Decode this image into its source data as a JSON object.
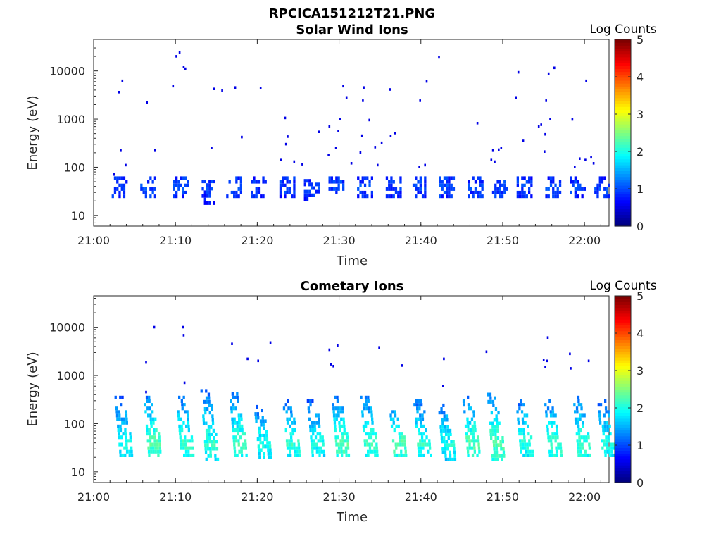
{
  "figure_title": "RPCICA151212T21.PNG",
  "chart_data": [
    {
      "type": "heatmap",
      "title": "Solar Wind Ions",
      "xlabel": "Time",
      "ylabel": "Energy (eV)",
      "xticks": [
        "21:00",
        "21:10",
        "21:20",
        "21:30",
        "21:40",
        "21:50",
        "22:00"
      ],
      "xlim_minutes": [
        0,
        63
      ],
      "yticks": [
        "10",
        "100",
        "1000",
        "10000"
      ],
      "ylim": [
        6,
        45000
      ],
      "yscale": "log",
      "colorbar": {
        "label": "Log Counts",
        "min": 0,
        "max": 5,
        "ticks": [
          "0",
          "1",
          "2",
          "3",
          "4",
          "5"
        ],
        "colormap": "jet"
      },
      "bursts": [
        {
          "t": 3.0,
          "e_lo": 25,
          "e_hi": 60,
          "peak": 0.55
        },
        {
          "t": 6.5,
          "e_lo": 25,
          "e_hi": 60,
          "peak": 0.6
        },
        {
          "t": 10.5,
          "e_lo": 25,
          "e_hi": 60,
          "peak": 0.6
        },
        {
          "t": 14.0,
          "e_lo": 18,
          "e_hi": 60,
          "peak": 0.55
        },
        {
          "t": 17.0,
          "e_lo": 25,
          "e_hi": 60,
          "peak": 0.6
        },
        {
          "t": 20.0,
          "e_lo": 25,
          "e_hi": 60,
          "peak": 0.55
        },
        {
          "t": 23.5,
          "e_lo": 25,
          "e_hi": 60,
          "peak": 0.55
        },
        {
          "t": 26.5,
          "e_lo": 22,
          "e_hi": 60,
          "peak": 0.5
        },
        {
          "t": 29.5,
          "e_lo": 25,
          "e_hi": 60,
          "peak": 0.6
        },
        {
          "t": 33.0,
          "e_lo": 25,
          "e_hi": 60,
          "peak": 0.6
        },
        {
          "t": 36.5,
          "e_lo": 25,
          "e_hi": 60,
          "peak": 0.5
        },
        {
          "t": 39.5,
          "e_lo": 25,
          "e_hi": 60,
          "peak": 0.55
        },
        {
          "t": 43.0,
          "e_lo": 25,
          "e_hi": 60,
          "peak": 0.6
        },
        {
          "t": 46.5,
          "e_lo": 25,
          "e_hi": 60,
          "peak": 0.55
        },
        {
          "t": 49.5,
          "e_lo": 25,
          "e_hi": 60,
          "peak": 0.6
        },
        {
          "t": 52.5,
          "e_lo": 25,
          "e_hi": 60,
          "peak": 0.55
        },
        {
          "t": 56.0,
          "e_lo": 25,
          "e_hi": 60,
          "peak": 0.55
        },
        {
          "t": 59.0,
          "e_lo": 25,
          "e_hi": 60,
          "peak": 0.55
        },
        {
          "t": 62.0,
          "e_lo": 25,
          "e_hi": 60,
          "peak": 0.55
        }
      ],
      "points": [
        {
          "t": 3.0,
          "e": 3600
        },
        {
          "t": 3.4,
          "e": 6200
        },
        {
          "t": 6.4,
          "e": 2200
        },
        {
          "t": 9.6,
          "e": 4800
        },
        {
          "t": 10.0,
          "e": 20000
        },
        {
          "t": 10.4,
          "e": 24000
        },
        {
          "t": 10.9,
          "e": 12000
        },
        {
          "t": 11.1,
          "e": 11000
        },
        {
          "t": 14.6,
          "e": 4200
        },
        {
          "t": 15.6,
          "e": 3900
        },
        {
          "t": 17.2,
          "e": 4500
        },
        {
          "t": 20.3,
          "e": 4400
        },
        {
          "t": 3.2,
          "e": 220
        },
        {
          "t": 7.4,
          "e": 220
        },
        {
          "t": 14.3,
          "e": 250
        },
        {
          "t": 18.0,
          "e": 420
        },
        {
          "t": 23.3,
          "e": 1050
        },
        {
          "t": 23.6,
          "e": 430
        },
        {
          "t": 23.4,
          "e": 300
        },
        {
          "t": 27.4,
          "e": 540
        },
        {
          "t": 28.7,
          "e": 700
        },
        {
          "t": 30.0,
          "e": 1000
        },
        {
          "t": 30.4,
          "e": 4800
        },
        {
          "t": 30.8,
          "e": 2800
        },
        {
          "t": 28.6,
          "e": 180
        },
        {
          "t": 29.5,
          "e": 250
        },
        {
          "t": 29.8,
          "e": 560
        },
        {
          "t": 32.5,
          "e": 200
        },
        {
          "t": 32.7,
          "e": 450
        },
        {
          "t": 32.8,
          "e": 2400
        },
        {
          "t": 32.9,
          "e": 4500
        },
        {
          "t": 33.6,
          "e": 950
        },
        {
          "t": 34.3,
          "e": 260
        },
        {
          "t": 35.1,
          "e": 320
        },
        {
          "t": 36.1,
          "e": 4100
        },
        {
          "t": 36.2,
          "e": 440
        },
        {
          "t": 36.7,
          "e": 510
        },
        {
          "t": 39.8,
          "e": 2400
        },
        {
          "t": 40.6,
          "e": 6000
        },
        {
          "t": 42.1,
          "e": 19000
        },
        {
          "t": 46.8,
          "e": 820
        },
        {
          "t": 48.7,
          "e": 220
        },
        {
          "t": 49.4,
          "e": 230
        },
        {
          "t": 49.7,
          "e": 250
        },
        {
          "t": 51.5,
          "e": 2800
        },
        {
          "t": 51.8,
          "e": 9300
        },
        {
          "t": 52.4,
          "e": 350
        },
        {
          "t": 54.3,
          "e": 700
        },
        {
          "t": 54.6,
          "e": 760
        },
        {
          "t": 55.2,
          "e": 2400
        },
        {
          "t": 55.1,
          "e": 480
        },
        {
          "t": 55.0,
          "e": 210
        },
        {
          "t": 55.5,
          "e": 8700
        },
        {
          "t": 55.7,
          "e": 1000
        },
        {
          "t": 56.2,
          "e": 11500
        },
        {
          "t": 58.4,
          "e": 980
        },
        {
          "t": 59.3,
          "e": 150
        },
        {
          "t": 60.0,
          "e": 140
        },
        {
          "t": 60.7,
          "e": 160
        },
        {
          "t": 60.1,
          "e": 6200
        },
        {
          "t": 2.4,
          "e": 70
        },
        {
          "t": 3.8,
          "e": 110
        },
        {
          "t": 22.8,
          "e": 140
        },
        {
          "t": 24.4,
          "e": 130
        },
        {
          "t": 25.4,
          "e": 115
        },
        {
          "t": 31.4,
          "e": 120
        },
        {
          "t": 34.6,
          "e": 110
        },
        {
          "t": 39.7,
          "e": 100
        },
        {
          "t": 40.4,
          "e": 110
        },
        {
          "t": 48.5,
          "e": 140
        },
        {
          "t": 48.9,
          "e": 130
        },
        {
          "t": 58.7,
          "e": 100
        },
        {
          "t": 61.0,
          "e": 120
        }
      ]
    },
    {
      "type": "heatmap",
      "title": "Cometary Ions",
      "xlabel": "Time",
      "ylabel": "Energy (eV)",
      "xticks": [
        "21:00",
        "21:10",
        "21:20",
        "21:30",
        "21:40",
        "21:50",
        "22:00"
      ],
      "xlim_minutes": [
        0,
        63
      ],
      "yticks": [
        "10",
        "100",
        "1000",
        "10000"
      ],
      "ylim": [
        6,
        45000
      ],
      "yscale": "log",
      "colorbar": {
        "label": "Log Counts",
        "min": 0,
        "max": 5,
        "ticks": [
          "0",
          "1",
          "2",
          "3",
          "4",
          "5"
        ],
        "colormap": "jet"
      },
      "bursts": [
        {
          "t": 3.0,
          "e_lo": 22,
          "e_hi": 350,
          "peak": 1.6
        },
        {
          "t": 6.5,
          "e_lo": 22,
          "e_hi": 400,
          "peak": 1.9
        },
        {
          "t": 10.5,
          "e_lo": 22,
          "e_hi": 350,
          "peak": 1.8
        },
        {
          "t": 13.5,
          "e_lo": 18,
          "e_hi": 480,
          "peak": 1.7
        },
        {
          "t": 17.0,
          "e_lo": 22,
          "e_hi": 450,
          "peak": 1.8
        },
        {
          "t": 20.0,
          "e_lo": 20,
          "e_hi": 250,
          "peak": 1.6
        },
        {
          "t": 23.5,
          "e_lo": 22,
          "e_hi": 300,
          "peak": 1.7
        },
        {
          "t": 26.5,
          "e_lo": 22,
          "e_hi": 300,
          "peak": 1.6
        },
        {
          "t": 29.5,
          "e_lo": 22,
          "e_hi": 400,
          "peak": 1.9
        },
        {
          "t": 33.0,
          "e_lo": 22,
          "e_hi": 380,
          "peak": 1.8
        },
        {
          "t": 36.5,
          "e_lo": 22,
          "e_hi": 250,
          "peak": 1.9
        },
        {
          "t": 39.5,
          "e_lo": 22,
          "e_hi": 300,
          "peak": 1.7
        },
        {
          "t": 42.5,
          "e_lo": 18,
          "e_hi": 250,
          "peak": 1.6
        },
        {
          "t": 45.5,
          "e_lo": 22,
          "e_hi": 350,
          "peak": 1.9
        },
        {
          "t": 48.5,
          "e_lo": 18,
          "e_hi": 450,
          "peak": 1.9
        },
        {
          "t": 52.0,
          "e_lo": 22,
          "e_hi": 300,
          "peak": 1.7
        },
        {
          "t": 55.5,
          "e_lo": 22,
          "e_hi": 300,
          "peak": 1.8
        },
        {
          "t": 59.0,
          "e_lo": 22,
          "e_hi": 350,
          "peak": 1.8
        },
        {
          "t": 62.0,
          "e_lo": 22,
          "e_hi": 300,
          "peak": 1.6
        }
      ],
      "points": [
        {
          "t": 6.3,
          "e": 1850
        },
        {
          "t": 6.3,
          "e": 450
        },
        {
          "t": 7.3,
          "e": 10000
        },
        {
          "t": 10.8,
          "e": 10000
        },
        {
          "t": 10.9,
          "e": 6800
        },
        {
          "t": 11.0,
          "e": 700
        },
        {
          "t": 16.8,
          "e": 4500
        },
        {
          "t": 18.7,
          "e": 2200
        },
        {
          "t": 20.0,
          "e": 2000
        },
        {
          "t": 21.5,
          "e": 4800
        },
        {
          "t": 28.7,
          "e": 3400
        },
        {
          "t": 28.9,
          "e": 1700
        },
        {
          "t": 29.2,
          "e": 1550
        },
        {
          "t": 29.7,
          "e": 4200
        },
        {
          "t": 34.8,
          "e": 3800
        },
        {
          "t": 37.6,
          "e": 1600
        },
        {
          "t": 42.7,
          "e": 2200
        },
        {
          "t": 42.6,
          "e": 600
        },
        {
          "t": 47.9,
          "e": 3100
        },
        {
          "t": 54.9,
          "e": 2100
        },
        {
          "t": 55.1,
          "e": 1500
        },
        {
          "t": 55.4,
          "e": 6100
        },
        {
          "t": 55.3,
          "e": 2000
        },
        {
          "t": 58.1,
          "e": 2800
        },
        {
          "t": 58.2,
          "e": 1400
        },
        {
          "t": 60.4,
          "e": 2000
        }
      ]
    }
  ]
}
